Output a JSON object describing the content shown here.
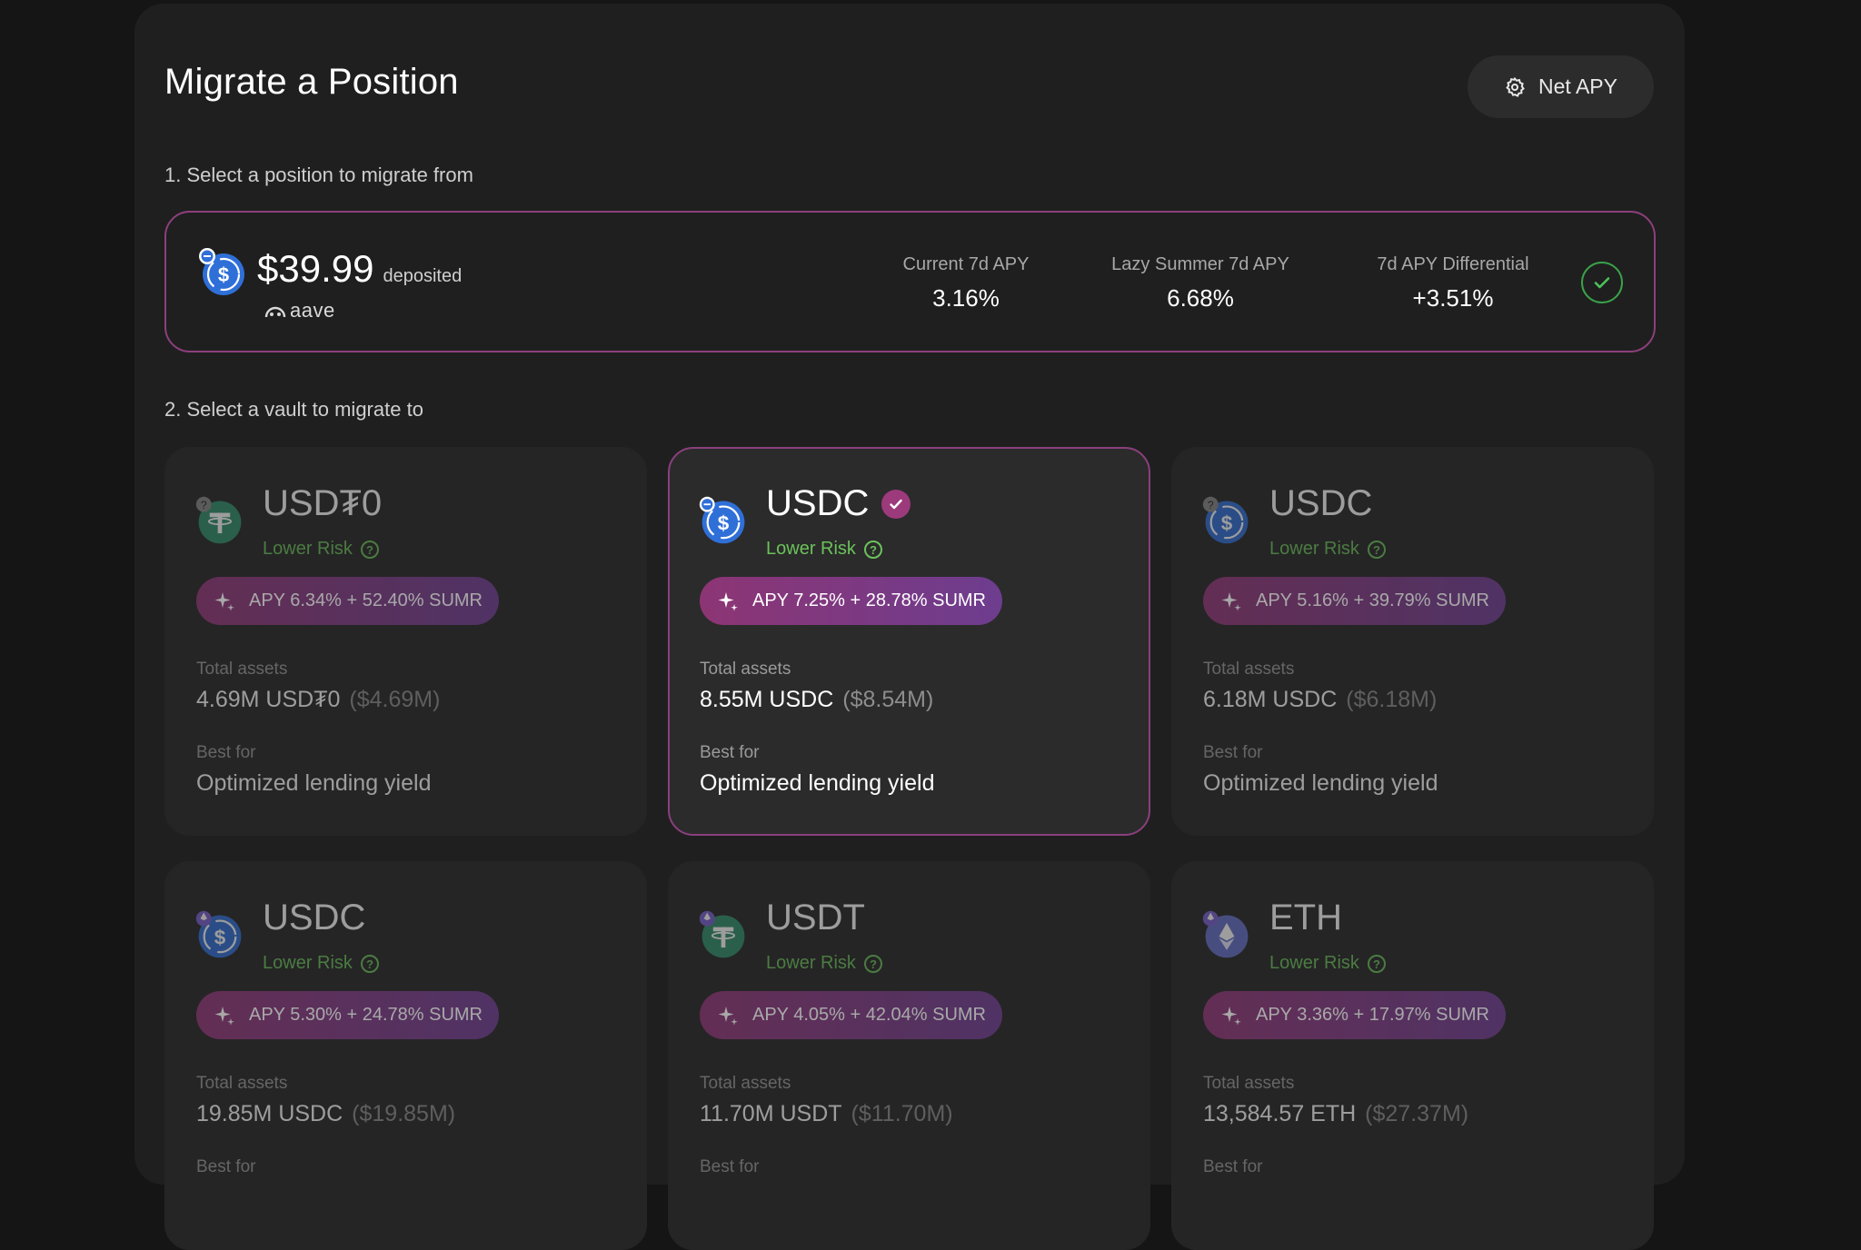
{
  "header": {
    "title": "Migrate a Position",
    "net_apy_label": "Net APY"
  },
  "steps": {
    "step1": "1. Select a position to migrate from",
    "step2": "2. Select a vault to migrate to"
  },
  "position": {
    "amount": "$39.99",
    "deposited_label": "deposited",
    "protocol": "aave",
    "token_icon": "usdc-icon",
    "stats": [
      {
        "label": "Current 7d APY",
        "value": "3.16%"
      },
      {
        "label": "Lazy Summer 7d APY",
        "value": "6.68%"
      },
      {
        "label": "7d APY Differential",
        "value": "+3.51%"
      }
    ]
  },
  "vaults": [
    {
      "token": "USD₮0",
      "icon": "usdt-icon",
      "risk": "Lower Risk",
      "apy": "APY 6.34% + 52.40% SUMR",
      "assets_label": "Total assets",
      "assets": "4.69M USD₮0",
      "assets_usd": "($4.69M)",
      "best_for_label": "Best for",
      "best_for": "Optimized lending yield",
      "selected": false
    },
    {
      "token": "USDC",
      "icon": "usdc-icon",
      "risk": "Lower Risk",
      "apy": "APY 7.25% + 28.78% SUMR",
      "assets_label": "Total assets",
      "assets": "8.55M USDC",
      "assets_usd": "($8.54M)",
      "best_for_label": "Best for",
      "best_for": "Optimized lending yield",
      "selected": true
    },
    {
      "token": "USDC",
      "icon": "usdc-icon",
      "risk": "Lower Risk",
      "apy": "APY 5.16% + 39.79% SUMR",
      "assets_label": "Total assets",
      "assets": "6.18M USDC",
      "assets_usd": "($6.18M)",
      "best_for_label": "Best for",
      "best_for": "Optimized lending yield",
      "selected": false
    },
    {
      "token": "USDC",
      "icon": "usdc-icon",
      "risk": "Lower Risk",
      "apy": "APY 5.30% + 24.78% SUMR",
      "assets_label": "Total assets",
      "assets": "19.85M USDC",
      "assets_usd": "($19.85M)",
      "best_for_label": "Best for",
      "best_for": "",
      "selected": false
    },
    {
      "token": "USDT",
      "icon": "usdt-icon",
      "risk": "Lower Risk",
      "apy": "APY 4.05% + 42.04% SUMR",
      "assets_label": "Total assets",
      "assets": "11.70M USDT",
      "assets_usd": "($11.70M)",
      "best_for_label": "Best for",
      "best_for": "",
      "selected": false
    },
    {
      "token": "ETH",
      "icon": "eth-icon",
      "risk": "Lower Risk",
      "apy": "APY 3.36% + 17.97% SUMR",
      "assets_label": "Total assets",
      "assets": "13,584.57 ETH",
      "assets_usd": "($27.37M)",
      "best_for_label": "Best for",
      "best_for": "",
      "selected": false
    }
  ],
  "colors": {
    "accent_border": "#8a3f7d",
    "risk_green": "#6bc25a",
    "pill_start": "#8d3574",
    "pill_end": "#6d3d8f"
  }
}
